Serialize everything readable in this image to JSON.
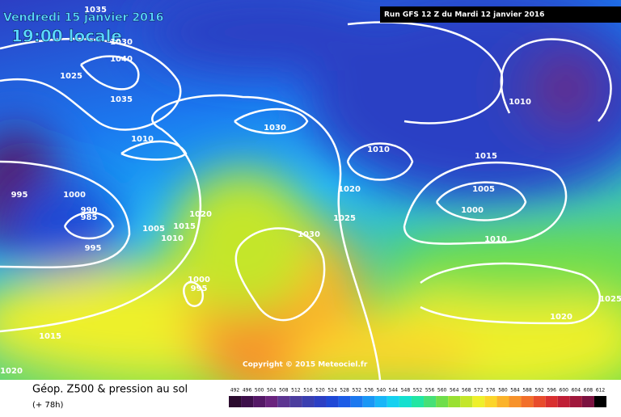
{
  "header": {
    "title": "Vendredi 15 janvier 2016",
    "time": "19:00 locale",
    "run": "Run GFS 12 Z du Mardi 12 janvier 2016"
  },
  "copyright": "Copyright © 2015 Meteociel.fr",
  "footer": {
    "title": "Géop. Z500 & pression au sol",
    "lead": "(+ 78h)"
  },
  "legend": [
    {
      "value": 492,
      "color": "#2b0b2e"
    },
    {
      "value": 496,
      "color": "#3d0f4a"
    },
    {
      "value": 500,
      "color": "#541866"
    },
    {
      "value": 504,
      "color": "#6a247e"
    },
    {
      "value": 508,
      "color": "#5c3591"
    },
    {
      "value": 512,
      "color": "#4b3d9e"
    },
    {
      "value": 516,
      "color": "#3a3fb0"
    },
    {
      "value": 520,
      "color": "#2c3fc4"
    },
    {
      "value": 524,
      "color": "#1f48d6"
    },
    {
      "value": 528,
      "color": "#1c5ce6"
    },
    {
      "value": 532,
      "color": "#1b78ef"
    },
    {
      "value": 536,
      "color": "#1a97f5"
    },
    {
      "value": 540,
      "color": "#19b6f8"
    },
    {
      "value": 544,
      "color": "#16d1f0"
    },
    {
      "value": 548,
      "color": "#14e0cf"
    },
    {
      "value": 552,
      "color": "#22e6a3"
    },
    {
      "value": 556,
      "color": "#46e077"
    },
    {
      "value": 560,
      "color": "#6fde4b"
    },
    {
      "value": 564,
      "color": "#99e032"
    },
    {
      "value": 568,
      "color": "#c4e62a"
    },
    {
      "value": 572,
      "color": "#eef02b"
    },
    {
      "value": 576,
      "color": "#fbd52a"
    },
    {
      "value": 580,
      "color": "#fbb32a"
    },
    {
      "value": 584,
      "color": "#f7922a"
    },
    {
      "value": 588,
      "color": "#f26f2a"
    },
    {
      "value": 592,
      "color": "#e84c2c"
    },
    {
      "value": 596,
      "color": "#d93030"
    },
    {
      "value": 600,
      "color": "#c01f36"
    },
    {
      "value": 604,
      "color": "#a0183c"
    },
    {
      "value": 608,
      "color": "#7c1240"
    },
    {
      "value": 612,
      "color": "#000000"
    }
  ],
  "isobar_labels": [
    "1035",
    "1030",
    "1040",
    "1025",
    "1035",
    "1030",
    "1010",
    "995",
    "1000",
    "990",
    "985",
    "995",
    "1005",
    "1015",
    "1010",
    "1020",
    "1030",
    "1020",
    "1025",
    "1010",
    "1015",
    "1005",
    "1000",
    "1010",
    "1010",
    "1000",
    "995",
    "1020",
    "1025",
    "1015",
    "1020"
  ]
}
